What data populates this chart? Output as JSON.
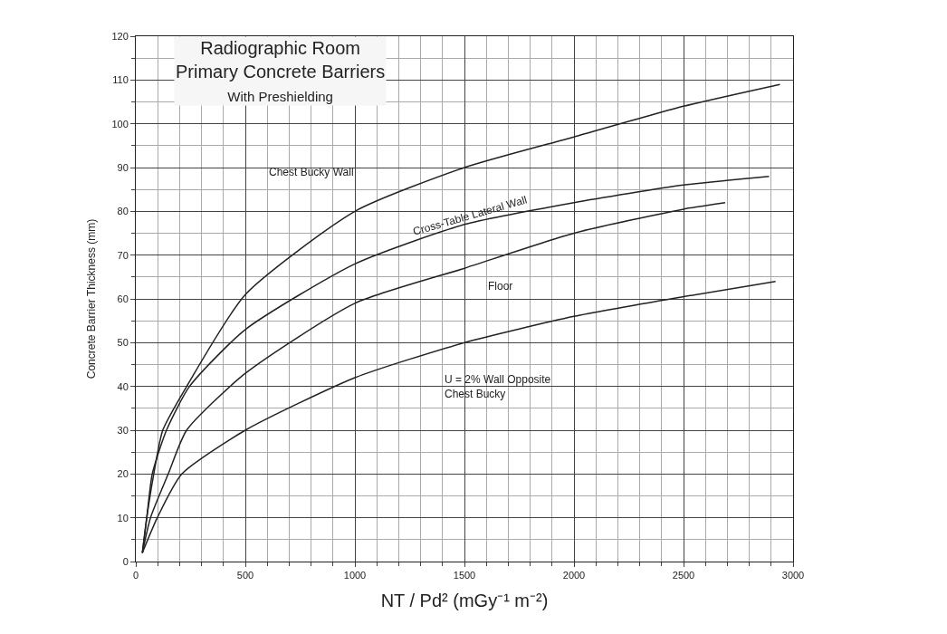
{
  "chart_data": {
    "type": "line",
    "title": "Radiographic Room\nPrimary Concrete Barriers",
    "subtitle": "With Preshielding",
    "xlabel": "NT / Pd² (mGy⁻¹ m⁻²)",
    "ylabel": "Concrete Barrier Thickness (mm)",
    "series": [
      {
        "name": "Chest Bucky Wall",
        "color": "#222222",
        "x": [
          30,
          50,
          82,
          123,
          232,
          500,
          1000,
          1500,
          2000,
          2500,
          2940
        ],
        "values": [
          2,
          10,
          20,
          30,
          40,
          61,
          80,
          90,
          97,
          104,
          109
        ]
      },
      {
        "name": "Cross-Table Lateral Wall",
        "color": "#222222",
        "x": [
          30,
          50,
          75,
          140,
          245,
          500,
          1000,
          1500,
          2000,
          2500,
          2890
        ],
        "values": [
          2,
          10,
          20,
          30,
          40,
          53,
          68,
          77,
          82,
          86,
          88
        ]
      },
      {
        "name": "Floor",
        "color": "#222222",
        "x": [
          30,
          67,
          148,
          232,
          500,
          1000,
          1500,
          2000,
          2500,
          2690
        ],
        "values": [
          2,
          10,
          20,
          30,
          43,
          59,
          67,
          75,
          80.5,
          82
        ]
      },
      {
        "name": "U = 2% Wall Opposite\nChest Bucky",
        "color": "#222222",
        "x": [
          30,
          98,
          210,
          500,
          1000,
          1500,
          2000,
          2500,
          2920
        ],
        "values": [
          2,
          10,
          20,
          30,
          42,
          50,
          56,
          60.5,
          64
        ]
      }
    ],
    "xlim": [
      0,
      3000
    ],
    "ylim": [
      0,
      120
    ],
    "xticks": [
      0,
      500,
      1000,
      1500,
      2000,
      2500,
      3000
    ],
    "yticks": [
      0,
      10,
      20,
      30,
      40,
      50,
      60,
      70,
      80,
      90,
      100,
      110,
      120
    ],
    "grid": true,
    "legend": false,
    "marker": "none",
    "line_style": "solid"
  }
}
